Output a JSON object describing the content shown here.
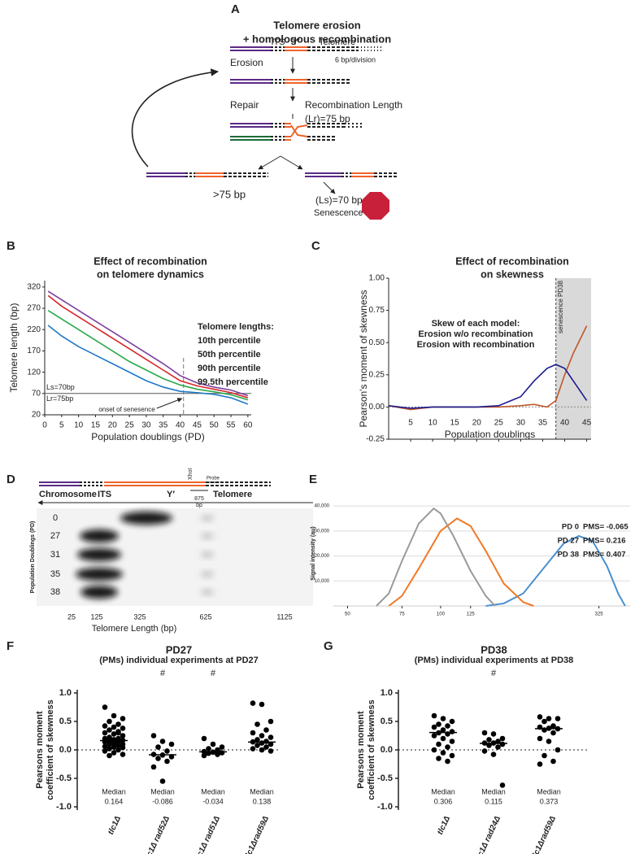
{
  "diagram": {
    "panel": "A",
    "title": [
      "Telomere erosion",
      "+ homologous recombination"
    ],
    "labels": {
      "its": "ITS",
      "y": "Y′",
      "telomere": "Telomere",
      "erosion": "Erosion",
      "rate": "6 bp/division",
      "repair": "Repair",
      "recombination": "Recombination Length",
      "lr": "(Lr)=75 bp",
      "longer": ">75 bp",
      "ls": "(Ls)=70 bp",
      "senescence": "Senescence"
    }
  },
  "gel": {
    "panel": "D",
    "labels": {
      "chromosome": "Chromosome",
      "its": "ITS",
      "y": "Y′",
      "telomere": "Telomere",
      "xhoi": "XhoI",
      "probe": "Probe",
      "size": "875",
      "unit": "bp"
    },
    "ylabel": "Population Doublings (PD)",
    "lanes": [
      0,
      27,
      31,
      35,
      38
    ],
    "xticks": [
      25,
      125,
      325,
      625,
      1125
    ],
    "xlabel": "Telomere Length (bp)"
  },
  "chart_data": [
    {
      "panel": "B",
      "type": "line",
      "title": [
        "Effect of recombination",
        "on telomere dynamics"
      ],
      "xlabel": "Population doublings (PD)",
      "ylabel": "Telomere length (bp)",
      "xlim": [
        0,
        61
      ],
      "ylim": [
        20,
        335
      ],
      "xticks": [
        0,
        5,
        10,
        15,
        20,
        25,
        30,
        35,
        40,
        45,
        50,
        55,
        60
      ],
      "yticks": [
        20,
        70,
        120,
        170,
        220,
        270,
        320
      ],
      "x": [
        1,
        5,
        10,
        15,
        20,
        25,
        30,
        35,
        40,
        45,
        50,
        55,
        60
      ],
      "legend_title": "Telomere lengths:",
      "series": [
        {
          "name": "10th percentile",
          "color": "#1f78c8",
          "values": [
            230,
            205,
            180,
            160,
            140,
            120,
            100,
            85,
            75,
            72,
            68,
            60,
            45
          ]
        },
        {
          "name": "50th percentile",
          "color": "#2aa84a",
          "values": [
            265,
            245,
            220,
            195,
            170,
            145,
            125,
            105,
            90,
            80,
            74,
            67,
            55
          ]
        },
        {
          "name": "90th percentile",
          "color": "#d7262a",
          "values": [
            300,
            275,
            250,
            225,
            200,
            175,
            150,
            125,
            100,
            88,
            80,
            72,
            60
          ]
        },
        {
          "name": "99.5th percentile",
          "color": "#7b3fa0",
          "values": [
            310,
            290,
            265,
            240,
            215,
            190,
            165,
            140,
            112,
            95,
            85,
            78,
            65
          ]
        }
      ],
      "hline": {
        "value": 70,
        "labels": [
          "Ls=70bp",
          "Lr=75bp"
        ]
      },
      "vline": {
        "value": 41,
        "label": "onset of senesence"
      }
    },
    {
      "panel": "C",
      "type": "line",
      "title": [
        "Effect of recombination",
        "on skewness"
      ],
      "xlabel": "Population doublings",
      "ylabel": "Pearson's moment of skewness",
      "xlim": [
        0,
        46
      ],
      "ylim": [
        -0.25,
        1
      ],
      "xticks": [
        5,
        10,
        15,
        20,
        25,
        30,
        35,
        40,
        45
      ],
      "yticks": [
        -0.25,
        {
          "value": 0,
          "label": "0.00"
        },
        0.25,
        {
          "value": 0.5,
          "label": "0.50"
        },
        0.75,
        {
          "value": 1,
          "label": "1.00"
        }
      ],
      "x": [
        0,
        5,
        10,
        15,
        20,
        25,
        30,
        33,
        36,
        38,
        40,
        42,
        45
      ],
      "legend_title": "Skew of each model:",
      "series": [
        {
          "name": "Erosion w/o recombination",
          "color": "#c0572a",
          "values": [
            0.01,
            -0.02,
            0,
            0,
            0,
            0,
            0.01,
            0.02,
            0,
            0.05,
            0.25,
            0.42,
            0.63
          ]
        },
        {
          "name": "Erosion with recombination",
          "color": "#1b1b8f",
          "values": [
            0.01,
            -0.01,
            0,
            0,
            0,
            0.01,
            0.08,
            0.2,
            0.3,
            0.33,
            0.3,
            0.2,
            0.05
          ]
        }
      ],
      "shaded": {
        "from": 38,
        "to": 46,
        "label": "senescence PD38"
      },
      "zero_line": true
    },
    {
      "panel": "E",
      "type": "line",
      "ylabel": "Signal intensity (au)",
      "xscale": "log",
      "xlim": [
        45,
        410
      ],
      "ylim": [
        0,
        42000
      ],
      "xticks": [
        50,
        75,
        100,
        125,
        325
      ],
      "yticks": [
        {
          "value": 10000,
          "label": "10,000"
        },
        {
          "value": 20000,
          "label": "20,000"
        },
        {
          "value": 30000,
          "label": "30,000"
        },
        {
          "value": 40000,
          "label": "40,000"
        }
      ],
      "grid": true,
      "series": [
        {
          "name": "PD 0",
          "color": "#4a90d0",
          "stat_label": "PMS= -0.065",
          "x": [
            140,
            160,
            185,
            215,
            250,
            280,
            310,
            345,
            375,
            395
          ],
          "values": [
            0,
            1000,
            5000,
            15000,
            25000,
            28000,
            26000,
            16000,
            5000,
            0
          ]
        },
        {
          "name": "PD 27",
          "color": "#f07a28",
          "stat_label": "PMS= 0.216",
          "x": [
            68,
            75,
            85,
            100,
            113,
            125,
            140,
            160,
            185,
            200
          ],
          "values": [
            0,
            4000,
            15000,
            30000,
            35000,
            32000,
            22000,
            9000,
            1500,
            0
          ]
        },
        {
          "name": "PD 38",
          "color": "#9a9a9a",
          "stat_label": "PMS= 0.407",
          "x": [
            62,
            68,
            75,
            85,
            95,
            100,
            110,
            125,
            140,
            150
          ],
          "values": [
            0,
            5000,
            18000,
            33000,
            39000,
            37000,
            28000,
            14000,
            4000,
            0
          ]
        }
      ]
    },
    {
      "panel": "F",
      "type": "strip",
      "title": "PD27",
      "subtitle": "(PMs) individual experiments at PD27",
      "ylabel": [
        "Pearsons moment",
        "coefficient of skewness"
      ],
      "ylim": [
        -1,
        1
      ],
      "yticks": [
        {
          "value": -1,
          "label": "-1.0"
        },
        -0.5,
        {
          "value": 0,
          "label": "0.0"
        },
        0.5,
        {
          "value": 1,
          "label": "1.0"
        }
      ],
      "median_label": "Median",
      "groups": [
        {
          "name": "tlc1Δ",
          "median": 0.164,
          "values": [
            0.75,
            0.6,
            0.55,
            0.5,
            0.45,
            0.42,
            0.4,
            0.38,
            0.35,
            0.32,
            0.3,
            0.28,
            0.25,
            0.22,
            0.2,
            0.2,
            0.18,
            0.17,
            0.16,
            0.15,
            0.14,
            0.12,
            0.1,
            0.1,
            0.08,
            0.06,
            0.05,
            0.04,
            0.02,
            0,
            -0.02,
            -0.05,
            -0.08,
            -0.1,
            0.3
          ]
        },
        {
          "name": "tlc1Δ rad52Δ",
          "median": -0.086,
          "note": "#",
          "values": [
            0.25,
            0.15,
            0.1,
            0.05,
            -0.02,
            -0.08,
            -0.09,
            -0.12,
            -0.15,
            -0.2,
            -0.3,
            -0.55
          ]
        },
        {
          "name": "tlc1Δ rad51Δ",
          "median": -0.034,
          "note": "#",
          "values": [
            0.2,
            0.1,
            0.05,
            0.02,
            0,
            -0.03,
            -0.04,
            -0.05,
            -0.06,
            -0.08,
            -0.1
          ]
        },
        {
          "name": "tlc1Δrad59Δ",
          "median": 0.138,
          "values": [
            0.82,
            0.8,
            0.5,
            0.45,
            0.35,
            0.3,
            0.25,
            0.22,
            0.18,
            0.15,
            0.14,
            0.12,
            0.1,
            0.08,
            0.05,
            0.02,
            0,
            -0.02
          ]
        }
      ]
    },
    {
      "panel": "G",
      "type": "strip",
      "title": "PD38",
      "subtitle": "(PMs) individual experiments at PD38",
      "ylabel": [
        "Pearsons moment",
        "coefficient of skewness"
      ],
      "ylim": [
        -1,
        1
      ],
      "yticks": [
        {
          "value": -1,
          "label": "-1.0"
        },
        -0.5,
        {
          "value": 0,
          "label": "0.0"
        },
        0.5,
        {
          "value": 1,
          "label": "1.0"
        }
      ],
      "median_label": "Median",
      "groups": [
        {
          "name": "tlc1Δ",
          "median": 0.306,
          "values": [
            0.6,
            0.55,
            0.5,
            0.45,
            0.42,
            0.4,
            0.35,
            0.32,
            0.3,
            0.28,
            0.25,
            0.2,
            0.15,
            0.1,
            0.05,
            0,
            -0.05,
            -0.1,
            -0.15,
            -0.2
          ]
        },
        {
          "name": "tlc1Δ rad24Δ",
          "median": 0.115,
          "note": "#",
          "values": [
            0.3,
            0.28,
            0.2,
            0.18,
            0.15,
            0.12,
            0.12,
            0.1,
            0.08,
            0.05,
            -0.02,
            -0.08,
            -0.62
          ]
        },
        {
          "name": "tlc1Δrad59Δ",
          "median": 0.373,
          "values": [
            0.58,
            0.55,
            0.55,
            0.5,
            0.42,
            0.4,
            0.38,
            0.37,
            0.35,
            0.3,
            0.2,
            0.15,
            0,
            -0.1,
            -0.2,
            -0.25
          ]
        }
      ]
    }
  ]
}
